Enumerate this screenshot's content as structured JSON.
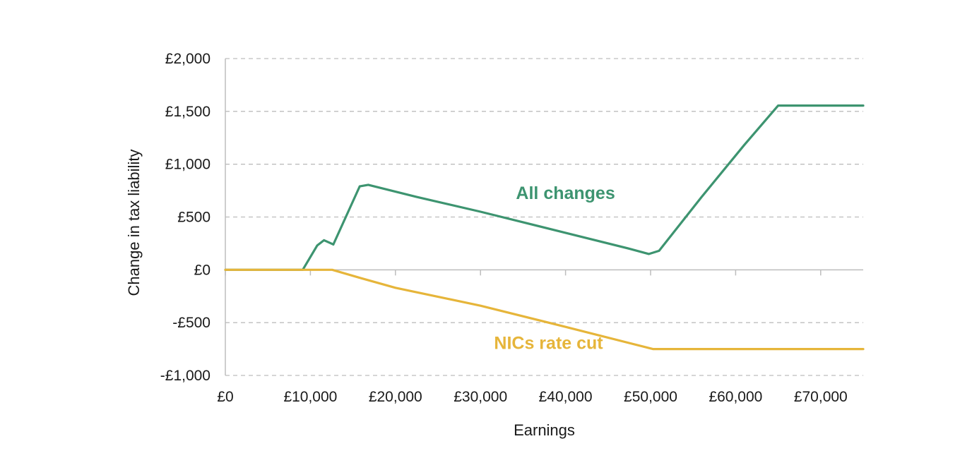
{
  "chart_data": {
    "type": "line",
    "title": "",
    "xlabel": "Earnings",
    "ylabel": "Change in tax liability",
    "xlim": [
      0,
      75000
    ],
    "ylim": [
      -1000,
      2000
    ],
    "x_ticks": [
      0,
      10000,
      20000,
      30000,
      40000,
      50000,
      60000,
      70000
    ],
    "x_tick_labels": [
      "£0",
      "£10,000",
      "£20,000",
      "£30,000",
      "£40,000",
      "£50,000",
      "£60,000",
      "£70,000"
    ],
    "y_ticks": [
      2000,
      1500,
      1000,
      500,
      0,
      -500,
      -1000
    ],
    "y_tick_labels": [
      "£2,000",
      "£1,500",
      "£1,000",
      "£500",
      "£0",
      "-£500",
      "-£1,000"
    ],
    "grid": "horizontal dashed",
    "legend": "none (inline series labels)",
    "series": [
      {
        "name": "All changes",
        "color": "#3d9470",
        "points": [
          [
            0,
            0
          ],
          [
            9100,
            0
          ],
          [
            10800,
            230
          ],
          [
            11600,
            280
          ],
          [
            12300,
            255
          ],
          [
            12700,
            240
          ],
          [
            15800,
            790
          ],
          [
            16800,
            805
          ],
          [
            22500,
            690
          ],
          [
            30000,
            550
          ],
          [
            40000,
            350
          ],
          [
            47500,
            200
          ],
          [
            49800,
            150
          ],
          [
            51000,
            180
          ],
          [
            56000,
            690
          ],
          [
            61000,
            1180
          ],
          [
            65000,
            1555
          ],
          [
            75000,
            1555
          ]
        ]
      },
      {
        "name": "NICs rate cut",
        "color": "#e6b53a",
        "points": [
          [
            0,
            0
          ],
          [
            12570,
            0
          ],
          [
            16000,
            -80
          ],
          [
            20000,
            -170
          ],
          [
            30000,
            -340
          ],
          [
            40000,
            -540
          ],
          [
            50270,
            -750
          ],
          [
            75000,
            -750
          ]
        ]
      }
    ],
    "annotations": [
      {
        "text": "All changes",
        "x": 40000,
        "y": 730,
        "series": 0
      },
      {
        "text": "NICs rate cut",
        "x": 38000,
        "y": -690,
        "series": 1
      }
    ]
  }
}
